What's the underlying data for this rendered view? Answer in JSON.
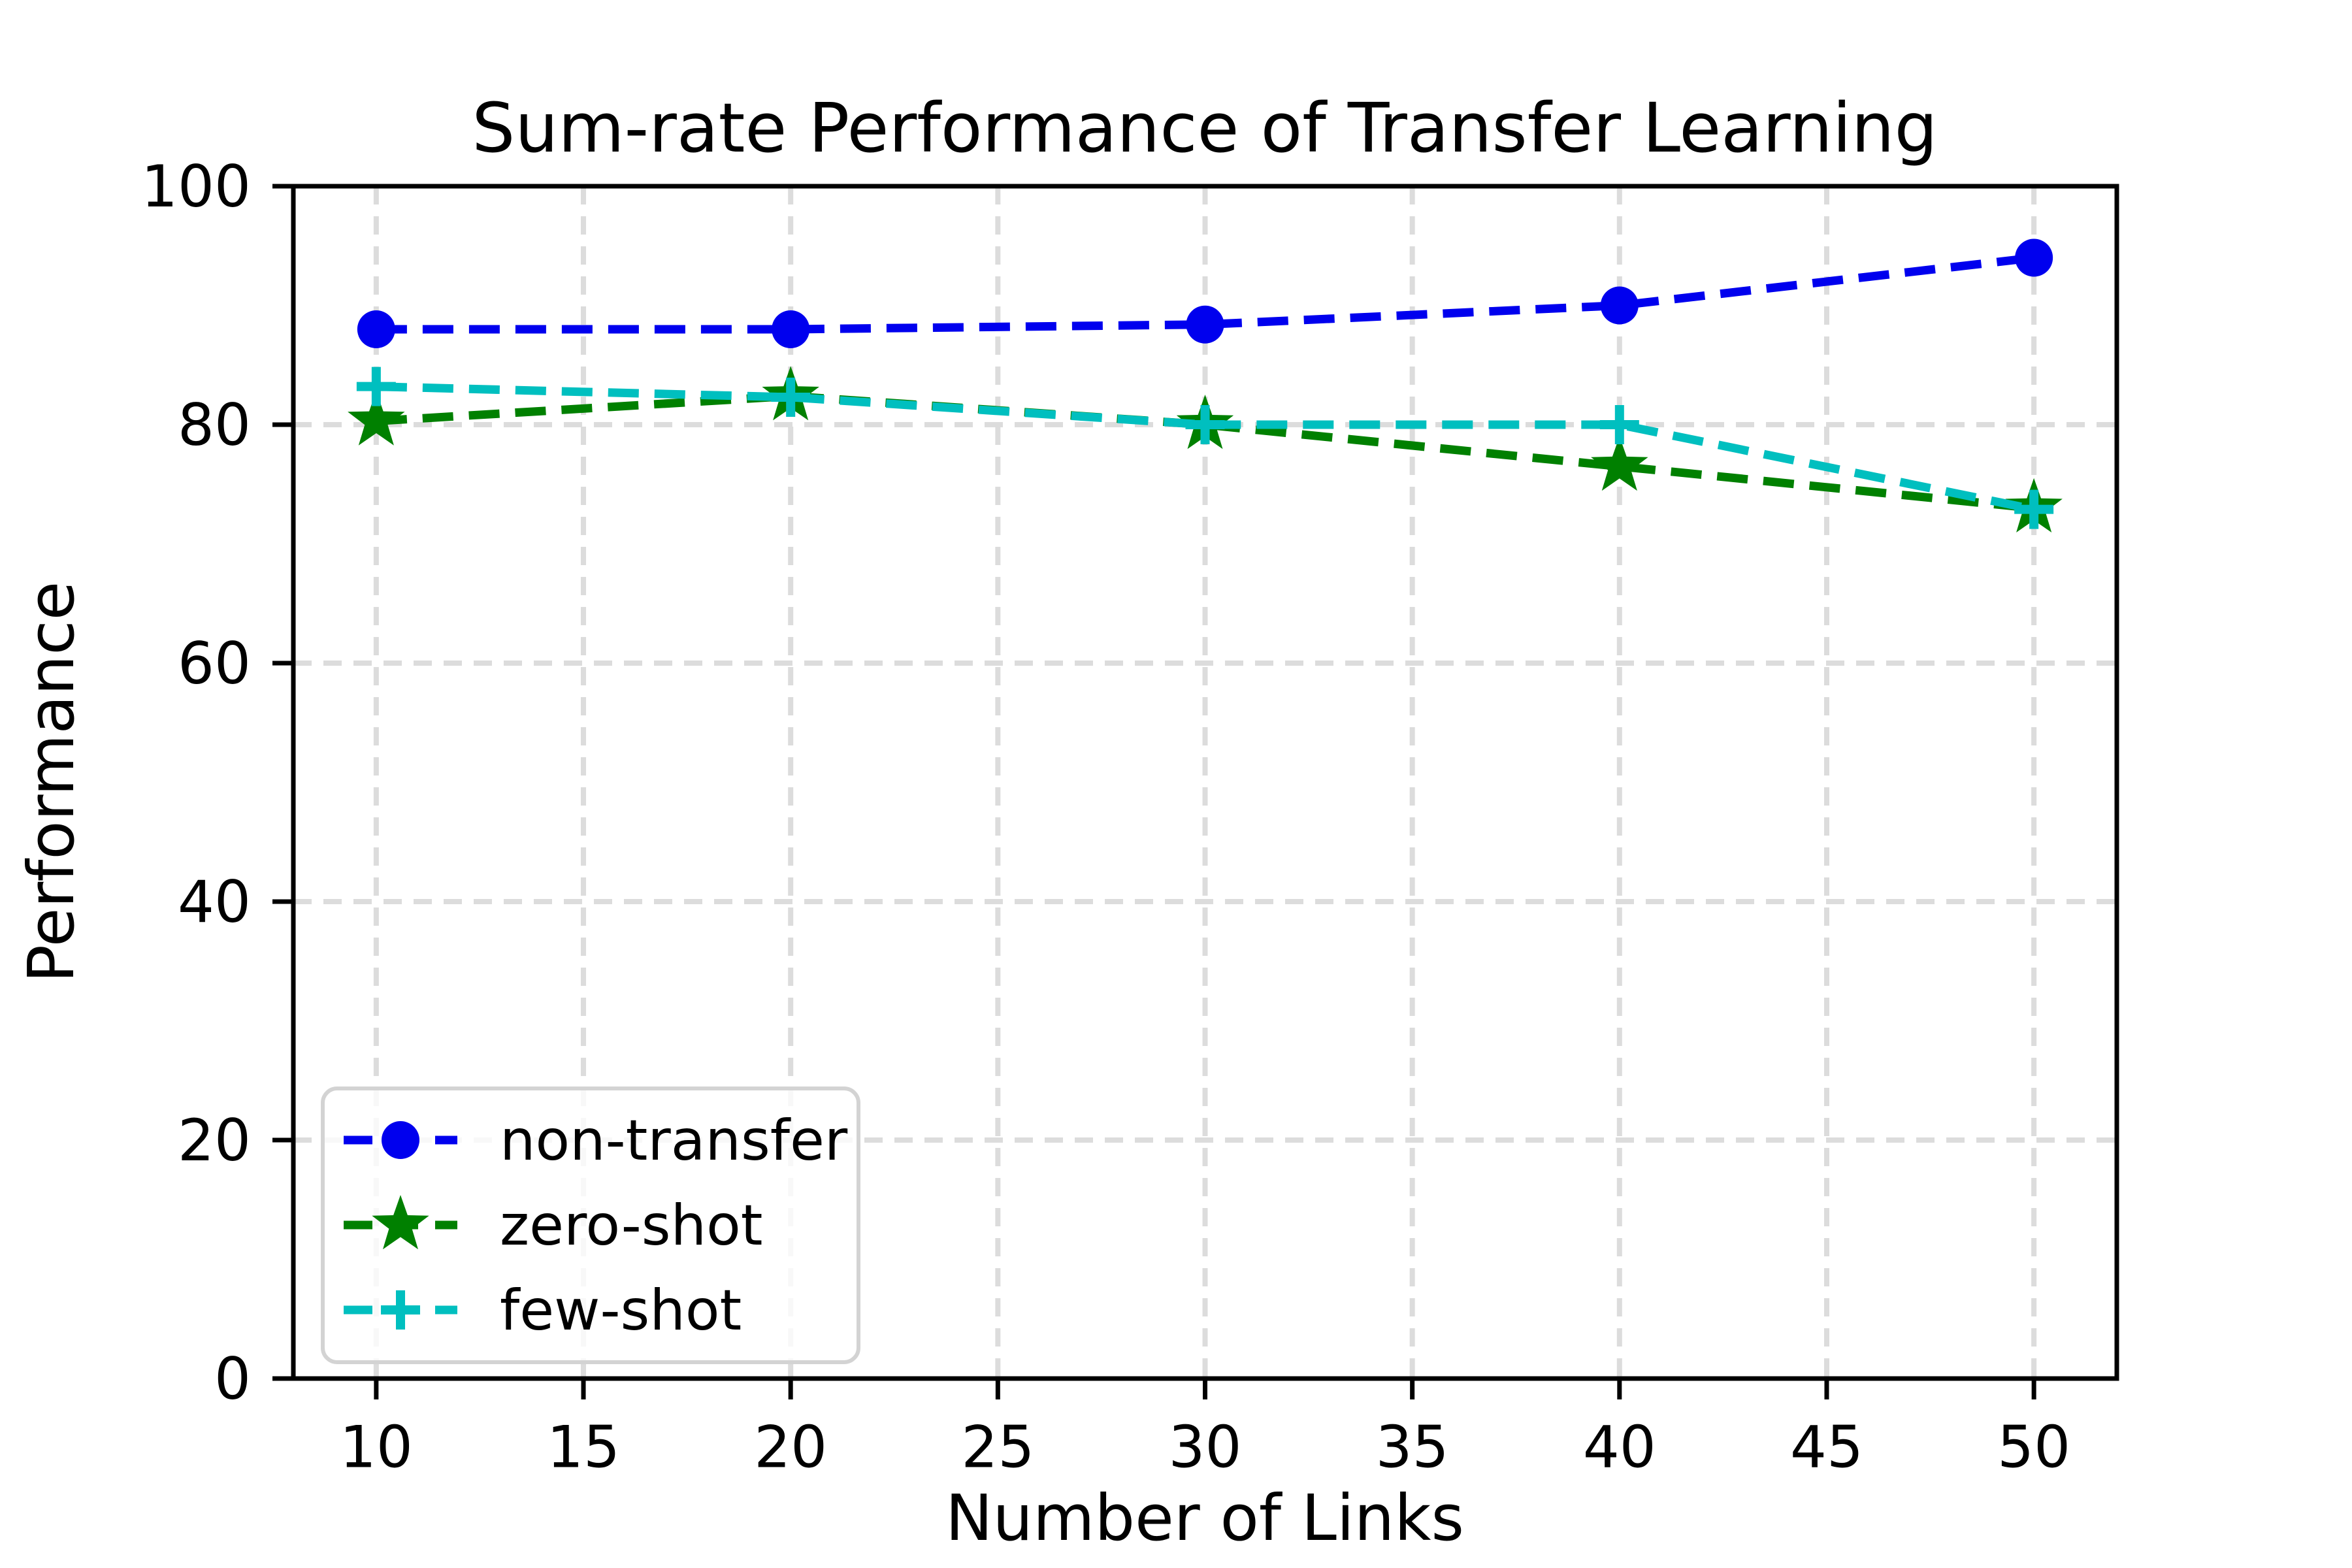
{
  "chart_data": {
    "type": "line",
    "title": "Sum-rate Performance of Transfer Learning",
    "xlabel": "Number of Links",
    "ylabel": "Performance",
    "x": [
      10,
      20,
      30,
      40,
      50
    ],
    "series": [
      {
        "name": "non-transfer",
        "color": "#0000ee",
        "marker": "circle",
        "linestyle": "dashed",
        "values": [
          88.0,
          88.0,
          88.4,
          90.0,
          94.0
        ]
      },
      {
        "name": "zero-shot",
        "color": "#008000",
        "marker": "star",
        "linestyle": "dashed",
        "values": [
          80.3,
          82.4,
          80.0,
          76.5,
          73.0
        ]
      },
      {
        "name": "few-shot",
        "color": "#00bfbf",
        "marker": "plus",
        "linestyle": "dashed",
        "values": [
          83.2,
          82.3,
          80.0,
          80.0,
          72.9
        ]
      }
    ],
    "xlim": [
      8,
      52
    ],
    "ylim": [
      0,
      100
    ],
    "xticks": [
      10,
      15,
      20,
      25,
      30,
      35,
      40,
      45,
      50
    ],
    "yticks": [
      0,
      20,
      40,
      60,
      80,
      100
    ],
    "grid": true,
    "grid_color": "#dcdcdc",
    "axis_color": "#000000",
    "legend_position": "lower left",
    "legend_border_color": "#d3d3d3",
    "background_color": "#ffffff"
  }
}
